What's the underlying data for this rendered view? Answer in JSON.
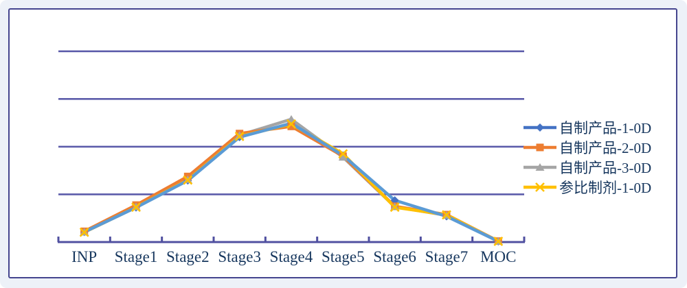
{
  "chart_data": {
    "type": "line",
    "title": "",
    "xlabel": "",
    "ylabel": "",
    "categories": [
      "INP",
      "Stage1",
      "Stage2",
      "Stage3",
      "Stage4",
      "Stage5",
      "Stage6",
      "Stage7",
      "MOC"
    ],
    "series": [
      {
        "name": "自制产品-1-0D",
        "marker": "diamond",
        "color": "#4472C4",
        "line_color": "#5B9BD5",
        "values": [
          4.2,
          14.5,
          25.8,
          44.0,
          49.8,
          36.3,
          17.5,
          10.8,
          0.3
        ]
      },
      {
        "name": "自制产品-2-0D",
        "marker": "square",
        "color": "#ED7D31",
        "line_color": "#ED7D31",
        "values": [
          4.5,
          15.5,
          27.5,
          45.5,
          48.5,
          36.0,
          15.0,
          11.5,
          0.4
        ]
      },
      {
        "name": "自制产品-3-0D",
        "marker": "triangle",
        "color": "#A5A5A5",
        "line_color": "#A5A5A5",
        "values": [
          4.2,
          14.8,
          26.2,
          44.8,
          51.5,
          35.6,
          14.8,
          11.2,
          0.3
        ]
      },
      {
        "name": "参比制剂-1-0D",
        "marker": "x",
        "color": "#FFC000",
        "line_color": "#FFC000",
        "values": [
          4.1,
          14.6,
          26.0,
          44.3,
          49.5,
          37.0,
          14.6,
          11.4,
          0.3
        ]
      }
    ],
    "ylim": [
      0,
      90
    ],
    "gridline_values": [
      20,
      40,
      60,
      80
    ],
    "grid": true,
    "y_tick_labels_visible": false,
    "legend_position": "right",
    "colors": {
      "gridline": "#5c5caa",
      "axis": "#5050a0",
      "tick": "#5050a0",
      "label_text": "#17375e",
      "panel_border": "#44448e",
      "panel_background": "#ffffff",
      "outer_background": "#edf1f8"
    }
  }
}
